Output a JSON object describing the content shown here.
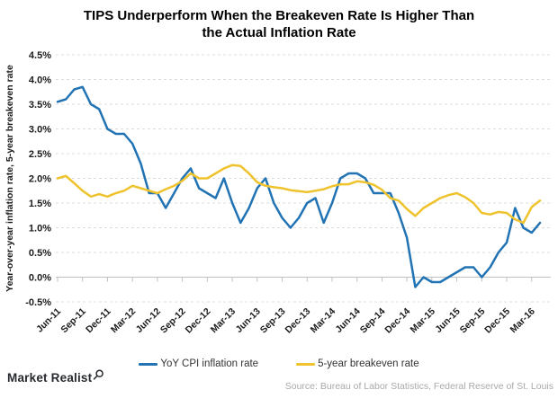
{
  "title": {
    "line1": "TIPS Underperform When the Breakeven Rate Is Higher Than",
    "line2": "the Actual Inflation Rate"
  },
  "y_axis": {
    "label": "Year-over-year inflation rate, 5-year breakeven rate",
    "tick_labels": [
      "4.5%",
      "4.0%",
      "3.5%",
      "3.0%",
      "2.5%",
      "2.0%",
      "1.5%",
      "1.0%",
      "0.5%",
      "0.0%",
      "-0.5%"
    ]
  },
  "legend": [
    {
      "label": "YoY CPI inflation rate",
      "color": "#2173b4"
    },
    {
      "label": "5-year breakeven rate",
      "color": "#efc32d"
    }
  ],
  "footer": {
    "brand": "Market Realist",
    "source": "Source: Bureau of Labor Statistics, Federal Reserve of St. Louis"
  },
  "colors": {
    "cpi_line": "#2173b4",
    "breakeven_line": "#efc32d",
    "gridline": "#dcdcdc",
    "axis_line": "#c0c0c0",
    "tick_text": "#1a1a1a",
    "title_text": "#000000",
    "source_text": "#a9a9a9"
  },
  "chart_data": {
    "type": "line",
    "title": "TIPS Underperform When the Breakeven Rate Is Higher Than the Actual Inflation Rate",
    "xlabel": "",
    "ylabel": "Year-over-year inflation rate, 5-year breakeven rate",
    "ylim": [
      -0.5,
      4.5
    ],
    "ytick_step": 0.5,
    "grid": "horizontal-dashed",
    "legend_position": "bottom",
    "xtick_every": 3,
    "x": [
      "Jun-11",
      "Jul-11",
      "Aug-11",
      "Sep-11",
      "Oct-11",
      "Nov-11",
      "Dec-11",
      "Jan-12",
      "Feb-12",
      "Mar-12",
      "Apr-12",
      "May-12",
      "Jun-12",
      "Jul-12",
      "Aug-12",
      "Sep-12",
      "Oct-12",
      "Nov-12",
      "Dec-12",
      "Jan-13",
      "Feb-13",
      "Mar-13",
      "Apr-13",
      "May-13",
      "Jun-13",
      "Jul-13",
      "Aug-13",
      "Sep-13",
      "Oct-13",
      "Nov-13",
      "Dec-13",
      "Jan-14",
      "Feb-14",
      "Mar-14",
      "Apr-14",
      "May-14",
      "Jun-14",
      "Jul-14",
      "Aug-14",
      "Sep-14",
      "Oct-14",
      "Nov-14",
      "Dec-14",
      "Jan-15",
      "Feb-15",
      "Mar-15",
      "Apr-15",
      "May-15",
      "Jun-15",
      "Jul-15",
      "Aug-15",
      "Sep-15",
      "Oct-15",
      "Nov-15",
      "Dec-15",
      "Jan-16",
      "Feb-16",
      "Mar-16",
      "Apr-16"
    ],
    "series": [
      {
        "name": "YoY CPI inflation rate",
        "color": "#2173b4",
        "values": [
          3.55,
          3.6,
          3.8,
          3.85,
          3.5,
          3.4,
          3.0,
          2.9,
          2.9,
          2.7,
          2.3,
          1.7,
          1.7,
          1.4,
          1.7,
          2.0,
          2.2,
          1.8,
          1.7,
          1.6,
          2.0,
          1.5,
          1.1,
          1.4,
          1.8,
          2.0,
          1.5,
          1.2,
          1.0,
          1.2,
          1.5,
          1.6,
          1.1,
          1.5,
          2.0,
          2.1,
          2.1,
          2.0,
          1.7,
          1.7,
          1.7,
          1.3,
          0.8,
          -0.2,
          0.0,
          -0.1,
          -0.1,
          0.0,
          0.1,
          0.2,
          0.2,
          0.0,
          0.2,
          0.5,
          0.7,
          1.4,
          1.0,
          0.9,
          1.1
        ]
      },
      {
        "name": "5-year breakeven rate",
        "color": "#efc32d",
        "values": [
          2.0,
          2.05,
          1.9,
          1.75,
          1.63,
          1.68,
          1.63,
          1.7,
          1.75,
          1.85,
          1.8,
          1.75,
          1.7,
          1.78,
          1.85,
          1.95,
          2.1,
          2.0,
          2.0,
          2.1,
          2.2,
          2.27,
          2.25,
          2.1,
          1.92,
          1.85,
          1.82,
          1.8,
          1.76,
          1.74,
          1.72,
          1.75,
          1.78,
          1.84,
          1.88,
          1.88,
          1.94,
          1.92,
          1.87,
          1.77,
          1.6,
          1.55,
          1.38,
          1.24,
          1.4,
          1.5,
          1.6,
          1.66,
          1.7,
          1.62,
          1.5,
          1.3,
          1.27,
          1.32,
          1.3,
          1.17,
          1.1,
          1.42,
          1.55
        ]
      }
    ]
  }
}
